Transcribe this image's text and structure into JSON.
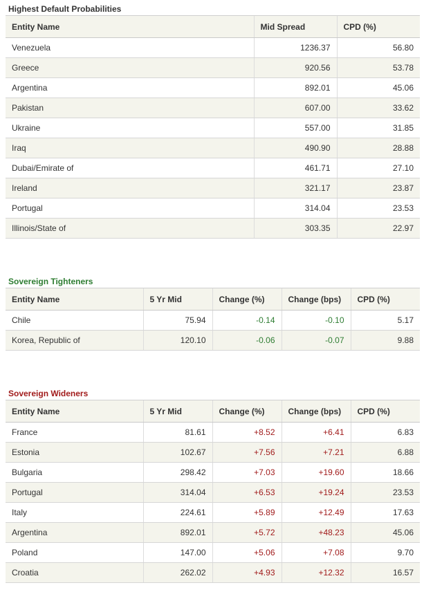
{
  "default_probabilities": {
    "title": "Highest Default Probabilities",
    "columns": [
      "Entity Name",
      "Mid Spread",
      "CPD (%)"
    ],
    "rows": [
      [
        "Venezuela",
        "1236.37",
        "56.80"
      ],
      [
        "Greece",
        "920.56",
        "53.78"
      ],
      [
        "Argentina",
        "892.01",
        "45.06"
      ],
      [
        "Pakistan",
        "607.00",
        "33.62"
      ],
      [
        "Ukraine",
        "557.00",
        "31.85"
      ],
      [
        "Iraq",
        "490.90",
        "28.88"
      ],
      [
        "Dubai/Emirate of",
        "461.71",
        "27.10"
      ],
      [
        "Ireland",
        "321.17",
        "23.87"
      ],
      [
        "Portugal",
        "314.04",
        "23.53"
      ],
      [
        "Illinois/State of",
        "303.35",
        "22.97"
      ]
    ]
  },
  "tighteners": {
    "title": "Sovereign Tighteners",
    "columns": [
      "Entity Name",
      "5 Yr Mid",
      "Change (%)",
      "Change (bps)",
      "CPD (%)"
    ],
    "rows": [
      [
        "Chile",
        "75.94",
        "-0.14",
        "-0.10",
        "5.17"
      ],
      [
        "Korea, Republic of",
        "120.10",
        "-0.06",
        "-0.07",
        "9.88"
      ]
    ]
  },
  "wideners": {
    "title": "Sovereign Wideners",
    "columns": [
      "Entity Name",
      "5 Yr Mid",
      "Change (%)",
      "Change (bps)",
      "CPD (%)"
    ],
    "rows": [
      [
        "France",
        "81.61",
        "+8.52",
        "+6.41",
        "6.83"
      ],
      [
        "Estonia",
        "102.67",
        "+7.56",
        "+7.21",
        "6.88"
      ],
      [
        "Bulgaria",
        "298.42",
        "+7.03",
        "+19.60",
        "18.66"
      ],
      [
        "Portugal",
        "314.04",
        "+6.53",
        "+19.24",
        "23.53"
      ],
      [
        "Italy",
        "224.61",
        "+5.89",
        "+12.49",
        "17.63"
      ],
      [
        "Argentina",
        "892.01",
        "+5.72",
        "+48.23",
        "45.06"
      ],
      [
        "Poland",
        "147.00",
        "+5.06",
        "+7.08",
        "9.70"
      ],
      [
        "Croatia",
        "262.02",
        "+4.93",
        "+12.32",
        "16.57"
      ]
    ]
  },
  "colors": {
    "tightener_green": "#2e7d32",
    "widener_red": "#a11b1b",
    "header_bg": "#f4f4ec"
  }
}
